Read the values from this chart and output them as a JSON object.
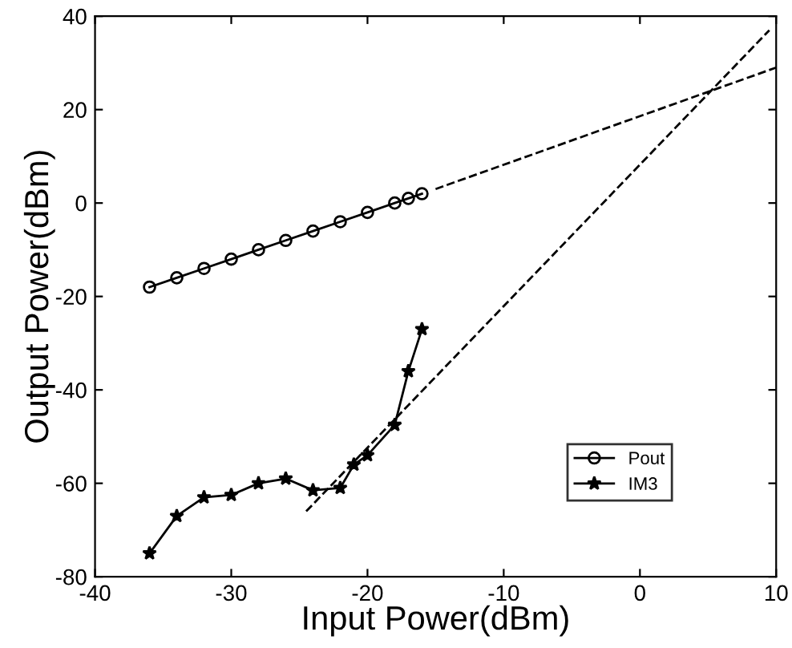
{
  "chart_data": {
    "type": "line",
    "xlabel": "Input Power(dBm)",
    "ylabel": "Output Power(dBm)",
    "xlim": [
      -40,
      10
    ],
    "ylim": [
      -80,
      40
    ],
    "xticks": [
      -40,
      -30,
      -20,
      -10,
      0,
      10
    ],
    "yticks": [
      -80,
      -60,
      -40,
      -20,
      0,
      20,
      40
    ],
    "grid": false,
    "legend": "bottom right",
    "series": [
      {
        "name": "Pout",
        "color": "#000000",
        "marker": "circle",
        "line_style": "solid",
        "x": [
          -36,
          -34,
          -32,
          -30,
          -28,
          -26,
          -24,
          -22,
          -20,
          -18,
          -17,
          -16
        ],
        "values": [
          -18,
          -16,
          -14,
          -12,
          -10,
          -8,
          -6,
          -4,
          -2,
          0,
          1,
          2
        ]
      },
      {
        "name": "IM3",
        "color": "#000000",
        "marker": "star",
        "line_style": "solid",
        "x": [
          -36,
          -34,
          -32,
          -30,
          -28,
          -26,
          -24,
          -22,
          -21,
          -20,
          -18,
          -17,
          -16
        ],
        "values": [
          -75,
          -67,
          -63,
          -62.5,
          -60,
          -59,
          -61.5,
          -61,
          -56,
          -54,
          -47.5,
          -36,
          -27
        ]
      },
      {
        "color": "#000000",
        "marker": "none",
        "line_style": "dashed",
        "x": [
          -15,
          10
        ],
        "values": [
          3,
          29
        ]
      },
      {
        "color": "#000000",
        "marker": "none",
        "line_style": "dashed",
        "x": [
          -24.5,
          9.5
        ],
        "values": [
          -66,
          37
        ]
      }
    ]
  }
}
